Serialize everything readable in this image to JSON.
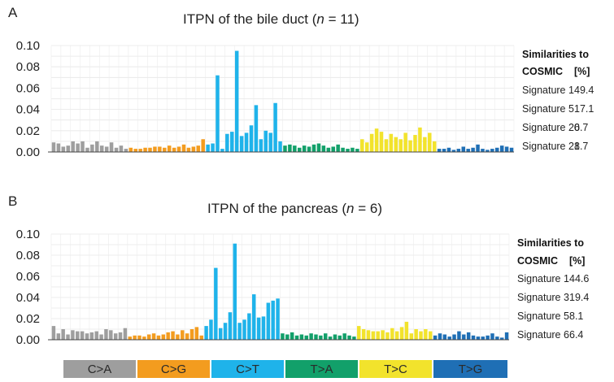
{
  "panels": [
    {
      "letter": "A",
      "title_prefix": "ITPN of the bile duct (",
      "title_n": "n",
      "title_suffix": " = 11)",
      "similarity": {
        "heading1": "Similarities to",
        "heading2": "COSMIC",
        "unit": "[%]",
        "rows": [
          {
            "label": "Signature 1",
            "value": "49.4"
          },
          {
            "label": "Signature 5",
            "value": "17.1"
          },
          {
            "label": "Signature 20",
            "value": "6.7"
          },
          {
            "label": "Signature 21",
            "value": "8.7"
          }
        ]
      }
    },
    {
      "letter": "B",
      "title_prefix": "ITPN of the pancreas (",
      "title_n": "n",
      "title_suffix": " = 6)",
      "similarity": {
        "heading1": "Similarities to",
        "heading2": "COSMIC",
        "unit": "[%]",
        "rows": [
          {
            "label": "Signature 1",
            "value": "44.6"
          },
          {
            "label": "Signature 3",
            "value": "19.4"
          },
          {
            "label": "Signature 5",
            "value": "8.1"
          },
          {
            "label": "Signature 6",
            "value": "6.4"
          }
        ]
      }
    }
  ],
  "legend": [
    {
      "label": "C>A",
      "color": "#9e9e9e"
    },
    {
      "label": "C>G",
      "color": "#f39c1f"
    },
    {
      "label": "C>T",
      "color": "#1fb3ea"
    },
    {
      "label": "T>A",
      "color": "#12a06a"
    },
    {
      "label": "T>C",
      "color": "#f2e32c"
    },
    {
      "label": "T>G",
      "color": "#1f6fb5"
    }
  ],
  "chart_data": [
    {
      "type": "bar",
      "title": "ITPN of the bile duct (n = 11)",
      "xlabel": "",
      "ylabel": "",
      "ylim": [
        0,
        0.1
      ],
      "yticks": [
        "0.00",
        "0.02",
        "0.04",
        "0.06",
        "0.08",
        "0.10"
      ],
      "categories_per_group": 16,
      "groups": [
        "C>A",
        "C>G",
        "C>T",
        "T>A",
        "T>C",
        "T>G"
      ],
      "series": [
        {
          "name": "C>A",
          "values": [
            0.009,
            0.008,
            0.005,
            0.006,
            0.01,
            0.008,
            0.01,
            0.004,
            0.007,
            0.01,
            0.006,
            0.005,
            0.009,
            0.004,
            0.006,
            0.003
          ]
        },
        {
          "name": "C>G",
          "values": [
            0.004,
            0.003,
            0.003,
            0.004,
            0.004,
            0.005,
            0.005,
            0.004,
            0.006,
            0.004,
            0.005,
            0.007,
            0.004,
            0.005,
            0.006,
            0.012
          ]
        },
        {
          "name": "C>T",
          "values": [
            0.007,
            0.008,
            0.072,
            0.003,
            0.017,
            0.019,
            0.095,
            0.015,
            0.018,
            0.025,
            0.044,
            0.012,
            0.02,
            0.018,
            0.046,
            0.01
          ]
        },
        {
          "name": "T>A",
          "values": [
            0.006,
            0.007,
            0.006,
            0.004,
            0.006,
            0.005,
            0.007,
            0.008,
            0.006,
            0.004,
            0.005,
            0.007,
            0.004,
            0.003,
            0.004,
            0.003
          ]
        },
        {
          "name": "T>C",
          "values": [
            0.012,
            0.009,
            0.017,
            0.022,
            0.019,
            0.012,
            0.017,
            0.014,
            0.012,
            0.018,
            0.011,
            0.016,
            0.023,
            0.014,
            0.018,
            0.01
          ]
        },
        {
          "name": "T>G",
          "values": [
            0.003,
            0.003,
            0.004,
            0.002,
            0.003,
            0.005,
            0.003,
            0.004,
            0.007,
            0.003,
            0.002,
            0.003,
            0.004,
            0.006,
            0.005,
            0.004
          ]
        }
      ]
    },
    {
      "type": "bar",
      "title": "ITPN of the pancreas (n = 6)",
      "xlabel": "",
      "ylabel": "",
      "ylim": [
        0,
        0.1
      ],
      "yticks": [
        "0.00",
        "0.02",
        "0.04",
        "0.06",
        "0.08",
        "0.10"
      ],
      "categories_per_group": 16,
      "groups": [
        "C>A",
        "C>G",
        "C>T",
        "T>A",
        "T>C",
        "T>G"
      ],
      "series": [
        {
          "name": "C>A",
          "values": [
            0.013,
            0.006,
            0.01,
            0.005,
            0.009,
            0.008,
            0.008,
            0.006,
            0.007,
            0.008,
            0.005,
            0.01,
            0.009,
            0.006,
            0.007,
            0.011
          ]
        },
        {
          "name": "C>G",
          "values": [
            0.003,
            0.004,
            0.004,
            0.003,
            0.005,
            0.006,
            0.004,
            0.005,
            0.007,
            0.008,
            0.005,
            0.009,
            0.006,
            0.01,
            0.012,
            0.004
          ]
        },
        {
          "name": "C>T",
          "values": [
            0.013,
            0.019,
            0.068,
            0.011,
            0.016,
            0.026,
            0.091,
            0.016,
            0.019,
            0.025,
            0.043,
            0.021,
            0.022,
            0.035,
            0.037,
            0.039
          ]
        },
        {
          "name": "T>A",
          "values": [
            0.006,
            0.005,
            0.007,
            0.004,
            0.005,
            0.004,
            0.006,
            0.005,
            0.004,
            0.006,
            0.003,
            0.005,
            0.004,
            0.006,
            0.004,
            0.003
          ]
        },
        {
          "name": "T>C",
          "values": [
            0.013,
            0.01,
            0.009,
            0.008,
            0.008,
            0.009,
            0.007,
            0.011,
            0.008,
            0.012,
            0.017,
            0.006,
            0.01,
            0.008,
            0.01,
            0.008
          ]
        },
        {
          "name": "T>G",
          "values": [
            0.004,
            0.006,
            0.005,
            0.003,
            0.005,
            0.008,
            0.005,
            0.007,
            0.004,
            0.003,
            0.003,
            0.004,
            0.006,
            0.003,
            0.002,
            0.007
          ]
        }
      ]
    }
  ]
}
